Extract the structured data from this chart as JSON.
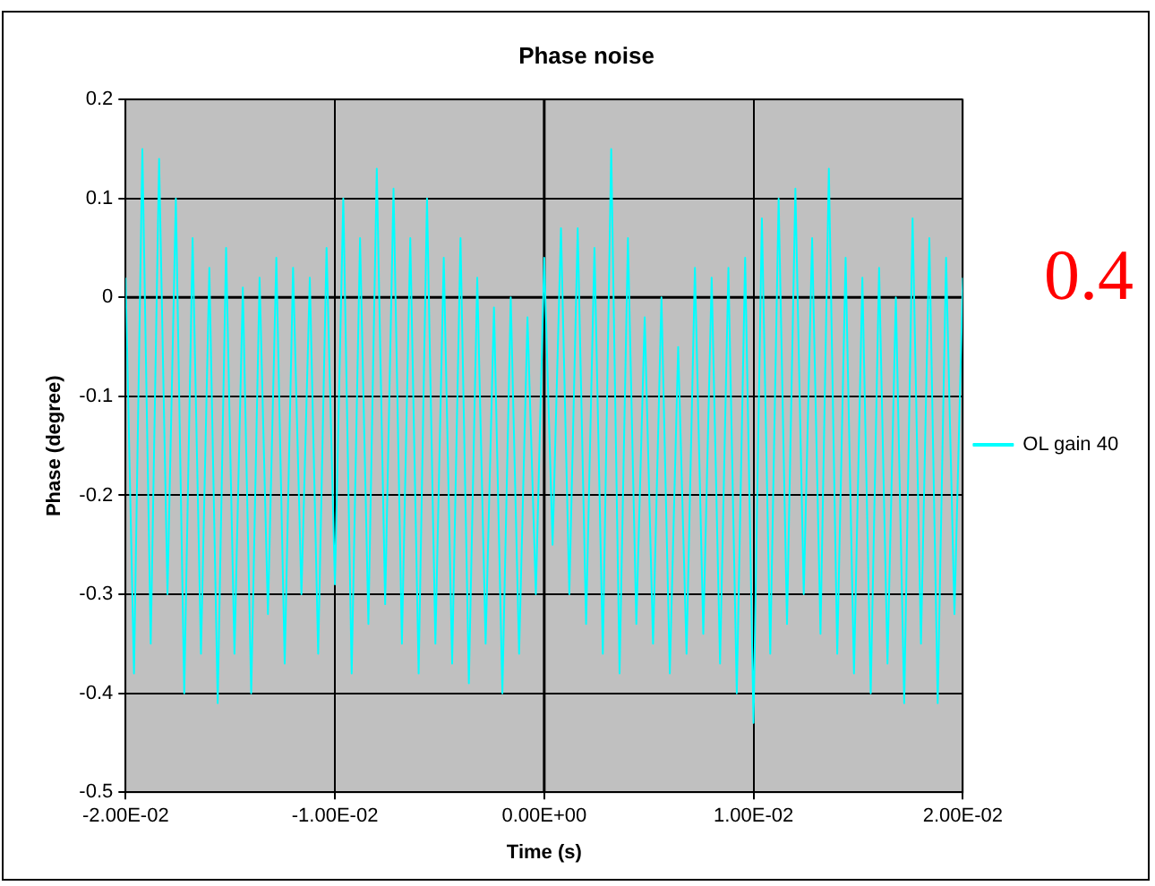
{
  "chart_data": {
    "type": "line",
    "title": "Phase noise",
    "xlabel": "Time (s)",
    "ylabel": "Phase (degree)",
    "x": [
      -0.02,
      -0.0196,
      -0.0192,
      -0.0188,
      -0.0184,
      -0.018,
      -0.0176,
      -0.0172,
      -0.0168,
      -0.0164,
      -0.016,
      -0.0156,
      -0.0152,
      -0.0148,
      -0.0144,
      -0.014,
      -0.0136,
      -0.0132,
      -0.0128,
      -0.0124,
      -0.012,
      -0.0116,
      -0.0112,
      -0.0108,
      -0.0104,
      -0.01,
      -0.0096,
      -0.0092,
      -0.0088,
      -0.0084,
      -0.008,
      -0.0076,
      -0.0072,
      -0.0068,
      -0.0064,
      -0.006,
      -0.0056,
      -0.0052,
      -0.0048,
      -0.0044,
      -0.004,
      -0.0036,
      -0.0032,
      -0.0028,
      -0.0024,
      -0.002,
      -0.0016,
      -0.0012,
      -0.0008,
      -0.0004,
      0,
      0.0004,
      0.0008,
      0.0012,
      0.0016,
      0.002,
      0.0024,
      0.0028,
      0.0032,
      0.0036,
      0.004,
      0.0044,
      0.0048,
      0.0052,
      0.0056,
      0.006,
      0.0064,
      0.0068,
      0.0072,
      0.0076,
      0.008,
      0.0084,
      0.0088,
      0.0092,
      0.0096,
      0.01,
      0.0104,
      0.0108,
      0.0112,
      0.0116,
      0.012,
      0.0124,
      0.0128,
      0.0132,
      0.0136,
      0.014,
      0.0144,
      0.0148,
      0.0152,
      0.0156,
      0.016,
      0.0164,
      0.0168,
      0.0172,
      0.0176,
      0.018,
      0.0184,
      0.0188,
      0.0192,
      0.0196,
      0.02
    ],
    "series": [
      {
        "name": "OL gain 40",
        "color": "#00ffff",
        "values": [
          0.02,
          -0.38,
          0.15,
          -0.35,
          0.14,
          -0.3,
          0.1,
          -0.4,
          0.06,
          -0.36,
          0.03,
          -0.41,
          0.05,
          -0.36,
          0.01,
          -0.4,
          0.02,
          -0.32,
          0.04,
          -0.37,
          0.03,
          -0.3,
          0.02,
          -0.36,
          0.05,
          -0.29,
          0.1,
          -0.38,
          0.06,
          -0.33,
          0.13,
          -0.31,
          0.11,
          -0.35,
          0.06,
          -0.38,
          0.1,
          -0.35,
          0.04,
          -0.37,
          0.06,
          -0.39,
          0.02,
          -0.35,
          -0.01,
          -0.4,
          0.0,
          -0.36,
          -0.02,
          -0.3,
          0.04,
          -0.25,
          0.07,
          -0.3,
          0.07,
          -0.33,
          0.05,
          -0.36,
          0.15,
          -0.38,
          0.06,
          -0.33,
          -0.02,
          -0.35,
          0.0,
          -0.38,
          -0.05,
          -0.36,
          0.03,
          -0.34,
          0.02,
          -0.37,
          0.03,
          -0.4,
          0.04,
          -0.43,
          0.08,
          -0.36,
          0.1,
          -0.33,
          0.11,
          -0.3,
          0.06,
          -0.34,
          0.13,
          -0.36,
          0.04,
          -0.38,
          0.02,
          -0.4,
          0.03,
          -0.37,
          0.0,
          -0.41,
          0.08,
          -0.35,
          0.06,
          -0.41,
          0.04,
          -0.32,
          0.02
        ]
      }
    ],
    "xlim": [
      -0.02,
      0.02
    ],
    "xticks": [
      {
        "value": -0.02,
        "label": "-2.00E-02"
      },
      {
        "value": -0.01,
        "label": "-1.00E-02"
      },
      {
        "value": 0,
        "label": "0.00E+00"
      },
      {
        "value": 0.01,
        "label": "1.00E-02"
      },
      {
        "value": 0.02,
        "label": "2.00E-02"
      }
    ],
    "ylim": [
      -0.5,
      0.2
    ],
    "yticks": [
      -0.5,
      -0.4,
      -0.3,
      -0.2,
      -0.1,
      0,
      0.1,
      0.2
    ],
    "grid": true,
    "legend": "right",
    "annotations": [
      "0.4"
    ]
  }
}
